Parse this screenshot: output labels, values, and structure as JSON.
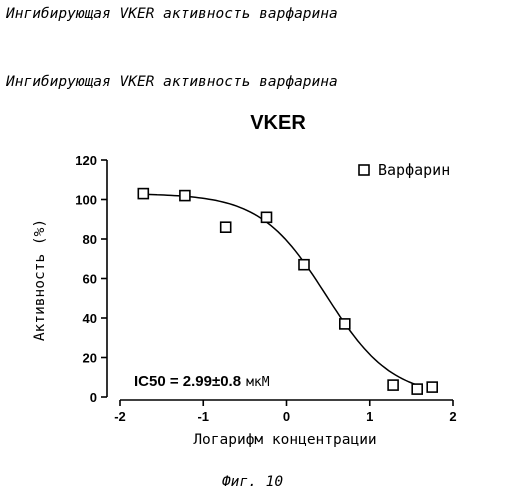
{
  "page": {
    "header_top": "Ингибирующая VKER активность варфарина",
    "header_chart": "Ингибирующая VKER активность варфарина",
    "figure_caption": "Фиг. 10"
  },
  "chart_data": {
    "type": "scatter",
    "title": "VKER",
    "xlabel": "Логарифм концентрации",
    "ylabel": "Активность (%)",
    "xlim": [
      -2,
      2
    ],
    "ylim": [
      0,
      120
    ],
    "xticks": [
      -2,
      -1,
      0,
      1,
      2
    ],
    "yticks": [
      0,
      20,
      40,
      60,
      80,
      100,
      120
    ],
    "legend_position": "top-right",
    "annotation": {
      "value": "IC50 = 2.99±0.8",
      "unit": "мкМ"
    },
    "series": [
      {
        "name": "Варфарин",
        "marker": "open-square",
        "x": [
          -1.72,
          -1.22,
          -0.73,
          -0.24,
          0.21,
          0.7,
          1.28,
          1.57,
          1.75
        ],
        "y": [
          103,
          102,
          86,
          91,
          67,
          37,
          6,
          4,
          5
        ]
      }
    ],
    "fit_curve": {
      "bottom": 0,
      "top": 103,
      "log_ic50": 0.476,
      "hill_slope": 1.1,
      "x_range": [
        -1.72,
        1.6
      ]
    }
  }
}
